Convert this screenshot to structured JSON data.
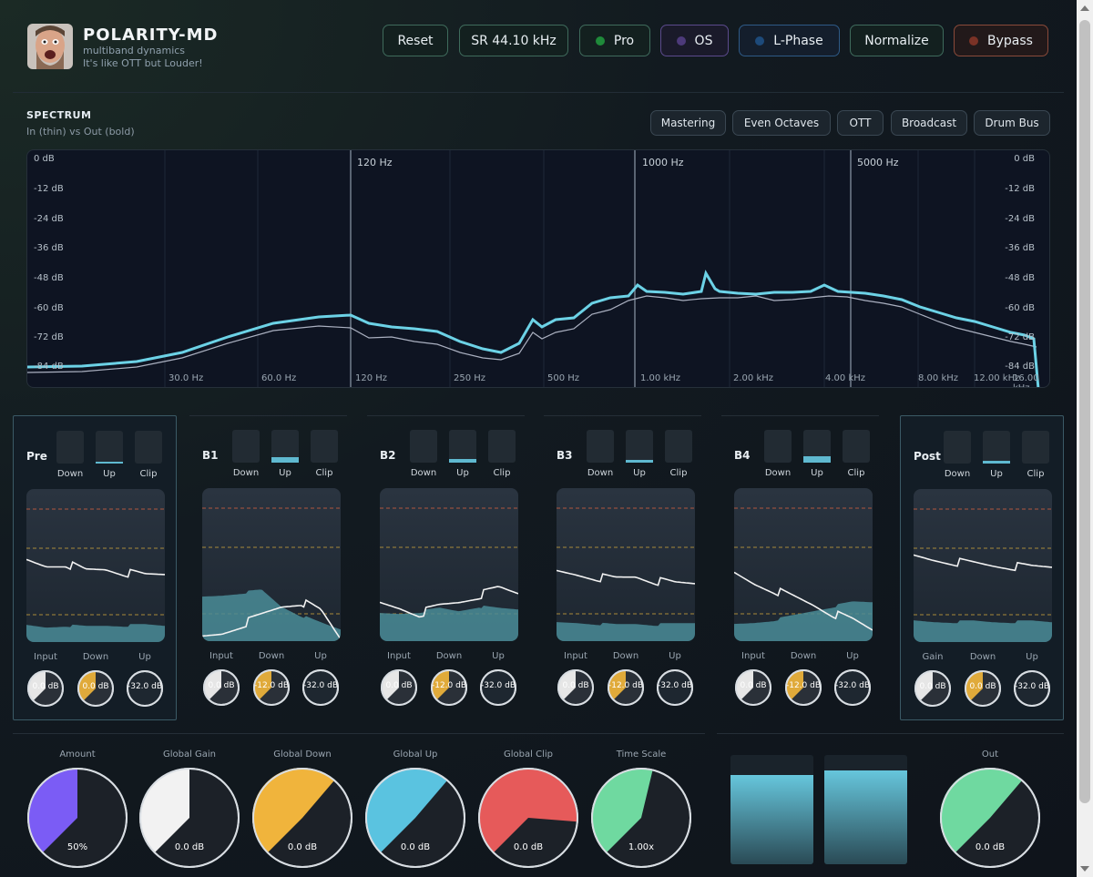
{
  "header": {
    "title": "POLARITY-MD",
    "subtitle": "multiband dynamics",
    "tagline": "It's like OTT but Louder!",
    "buttons": [
      {
        "label": "Reset",
        "led": ""
      },
      {
        "label": "SR 44.10 kHz",
        "led": ""
      },
      {
        "label": "Pro",
        "led": "#1f8a3a"
      },
      {
        "label": "OS",
        "led": "#5a3c8a"
      },
      {
        "label": "L-Phase",
        "led": "#1d4a7a"
      },
      {
        "label": "Normalize",
        "led": ""
      },
      {
        "label": "Bypass",
        "led": "#7a3226"
      }
    ]
  },
  "spectrum": {
    "title": "SPECTRUM",
    "subtitle": "In (thin) vs Out (bold)",
    "presets": [
      "Mastering",
      "Even Octaves",
      "OTT",
      "Broadcast",
      "Drum Bus"
    ],
    "db_labels": [
      "0 dB",
      "-12 dB",
      "-24 dB",
      "-36 dB",
      "-48 dB",
      "-60 dB",
      "-72 dB",
      "-84 dB"
    ],
    "hz_labels": [
      "30.0 Hz",
      "60.0 Hz",
      "120 Hz",
      "250 Hz",
      "500 Hz",
      "1.00 kHz",
      "2.00 kHz",
      "4.00 kHz",
      "8.00 kHz",
      "12.00 kHz",
      "16.00 kHz"
    ],
    "crossovers": [
      "120 Hz",
      "1000 Hz",
      "5000 Hz"
    ]
  },
  "bands": [
    {
      "name": "Pre",
      "meters": [
        "Down",
        "Up",
        "Clip"
      ],
      "knob_labels": [
        "Input",
        "Down",
        "Up"
      ],
      "knob_values": [
        "0.0 dB",
        "0.0 dB",
        "-32.0 dB"
      ]
    },
    {
      "name": "B1",
      "meters": [
        "Down",
        "Up",
        "Clip"
      ],
      "knob_labels": [
        "Input",
        "Down",
        "Up"
      ],
      "knob_values": [
        "0.0 dB",
        "-12.0 dB",
        "-32.0 dB"
      ]
    },
    {
      "name": "B2",
      "meters": [
        "Down",
        "Up",
        "Clip"
      ],
      "knob_labels": [
        "Input",
        "Down",
        "Up"
      ],
      "knob_values": [
        "0.0 dB",
        "-12.0 dB",
        "-32.0 dB"
      ]
    },
    {
      "name": "B3",
      "meters": [
        "Down",
        "Up",
        "Clip"
      ],
      "knob_labels": [
        "Input",
        "Down",
        "Up"
      ],
      "knob_values": [
        "0.0 dB",
        "-12.0 dB",
        "-32.0 dB"
      ]
    },
    {
      "name": "B4",
      "meters": [
        "Down",
        "Up",
        "Clip"
      ],
      "knob_labels": [
        "Input",
        "Down",
        "Up"
      ],
      "knob_values": [
        "0.0 dB",
        "-12.0 dB",
        "-32.0 dB"
      ]
    },
    {
      "name": "Post",
      "meters": [
        "Down",
        "Up",
        "Clip"
      ],
      "knob_labels": [
        "Gain",
        "Down",
        "Up"
      ],
      "knob_values": [
        "0.0 dB",
        "0.0 dB",
        "-32.0 dB"
      ]
    }
  ],
  "global": [
    {
      "label": "Amount",
      "value": "50%",
      "color": "#7b5cf5",
      "fraction": 0.5
    },
    {
      "label": "Global Gain",
      "value": "0.0 dB",
      "color": "#f2f2f2",
      "fraction": 0.5
    },
    {
      "label": "Global Down",
      "value": "0.0 dB",
      "color": "#f0b43c",
      "fraction": 0.65
    },
    {
      "label": "Global Up",
      "value": "0.0 dB",
      "color": "#5ac3e0",
      "fraction": 0.65
    },
    {
      "label": "Global Clip",
      "value": "0.0 dB",
      "color": "#e65a5a",
      "fraction": 0.85
    },
    {
      "label": "Time Scale",
      "value": "1.00x",
      "color": "#6fd9a0",
      "fraction": 0.55
    }
  ],
  "output": {
    "label": "Out",
    "value": "0.0 dB",
    "color": "#6fd9a0",
    "fraction": 0.65
  },
  "output_meters": [
    {
      "level": 0.82
    },
    {
      "level": 0.86
    }
  ]
}
